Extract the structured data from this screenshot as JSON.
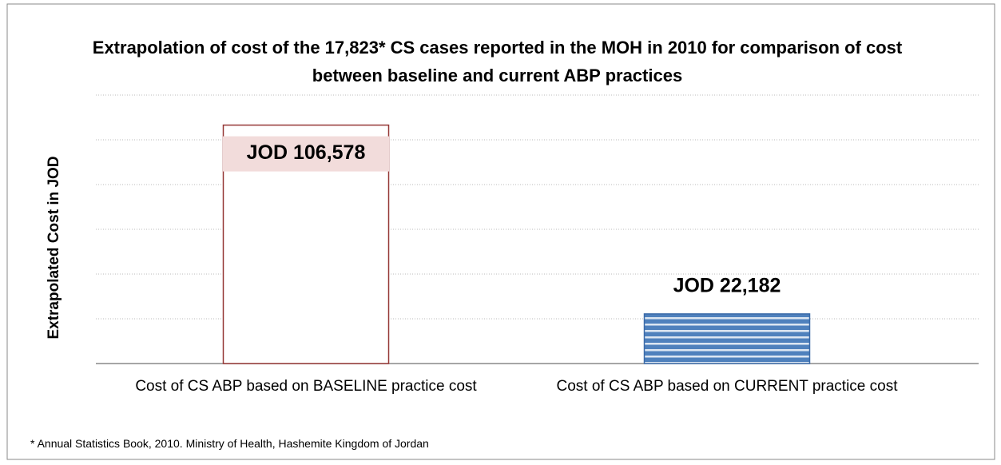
{
  "chart_data": {
    "type": "bar",
    "title": "Extrapolation of cost of the 17,823* CS cases reported in the MOH in 2010 for comparison of cost between baseline and current ABP practices",
    "ylabel": "Extrapolated Cost in JOD",
    "categories": [
      "Cost of CS ABP based on BASELINE practice cost",
      "Cost of CS ABP based on CURRENT practice cost"
    ],
    "values": [
      106578,
      22182
    ],
    "value_labels": [
      "JOD 106,578",
      "JOD 22,182"
    ],
    "colors": [
      "#ffffff",
      "#4f81bd"
    ],
    "edgecolors": [
      "#953735",
      "#3a6aa8"
    ],
    "ylim": [
      0,
      120000
    ],
    "yticks": [
      0,
      20000,
      40000,
      60000,
      80000,
      100000,
      120000
    ],
    "grid": true,
    "note": "* Annual Statistics Book, 2010. Ministry of Health, Hashemite Kingdom of Jordan"
  }
}
